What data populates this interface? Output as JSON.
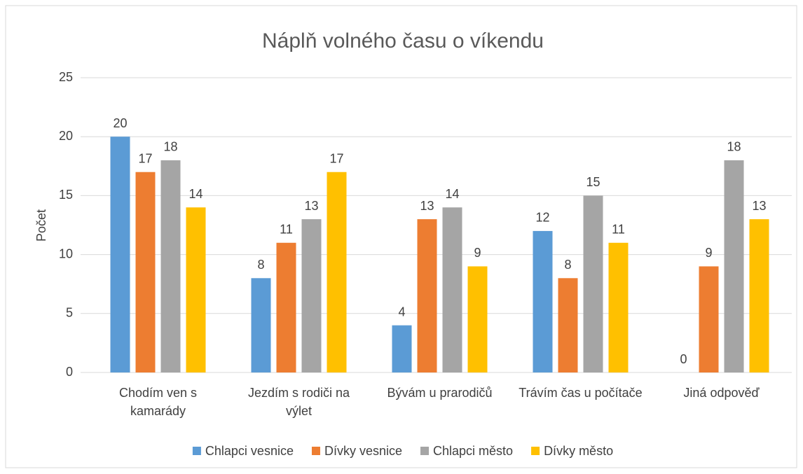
{
  "chart_data": {
    "type": "bar",
    "title": "Náplň volného času o víkendu",
    "y_label": "Počet",
    "categories": [
      "Chodím ven s kamarády",
      "Jezdím s rodiči na výlet",
      "Bývám u prarodičů",
      "Trávím čas u počítače",
      "Jiná odpověď"
    ],
    "series": [
      {
        "name": "Chlapci vesnice",
        "color": "#5b9bd5",
        "values": [
          20,
          8,
          4,
          12,
          0
        ]
      },
      {
        "name": "Dívky vesnice",
        "color": "#ed7d31",
        "values": [
          17,
          11,
          13,
          8,
          9
        ]
      },
      {
        "name": "Chlapci město",
        "color": "#a5a5a5",
        "values": [
          18,
          13,
          14,
          15,
          18
        ]
      },
      {
        "name": "Dívky město",
        "color": "#ffc000",
        "values": [
          14,
          17,
          9,
          11,
          13
        ]
      }
    ],
    "ylim": [
      0,
      25
    ],
    "yticks": [
      0,
      5,
      10,
      15,
      20,
      25
    ],
    "grid": true,
    "legend": "bottom"
  }
}
